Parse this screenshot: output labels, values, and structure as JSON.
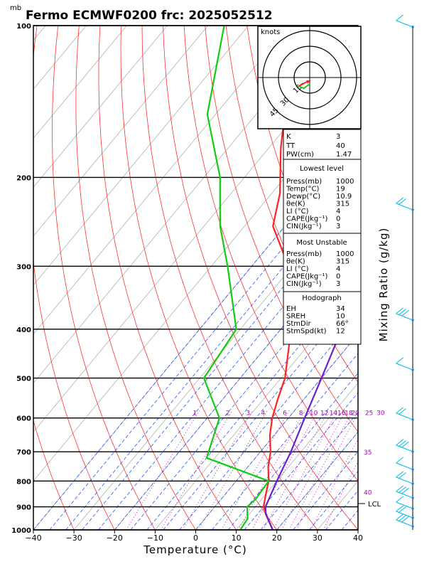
{
  "page": {
    "pressure_unit": "mb",
    "title": "Fermo ECMWF0200  frc: 2025052512",
    "x_axis_label": "Temperature (°C)",
    "right_axis_label": "Mixing Ratio (g/kg)",
    "lcl_label": "LCL"
  },
  "chart_data": {
    "type": "line",
    "title": "Fermo ECMWF0200  frc: 2025052512",
    "xlabel": "Temperature (°C)",
    "ylabel": "mb",
    "xlim": [
      -40,
      40
    ],
    "ylim": [
      1000,
      100
    ],
    "yscale": "log",
    "x_ticks": [
      -40,
      -30,
      -20,
      -10,
      0,
      10,
      20,
      30,
      40
    ],
    "y_ticks": [
      100,
      200,
      300,
      400,
      500,
      600,
      700,
      800,
      900,
      1000
    ],
    "mixing_ratio_labels": [
      "1",
      "2",
      "3",
      "4",
      "6",
      "8",
      "10",
      "12",
      "14",
      "16",
      "18",
      "20",
      "25",
      "30"
    ],
    "mixing_ratio_values": [
      1,
      2,
      3,
      4,
      6,
      8,
      10,
      12,
      14,
      16,
      18,
      20,
      25,
      30
    ],
    "theta_labels": [
      {
        "text": "35",
        "p": 700
      },
      {
        "text": "40",
        "p": 840
      }
    ],
    "series": [
      {
        "name": "",
        "color": "#ff2222",
        "points": [
          [
            19,
            1000
          ],
          [
            15.5,
            950
          ],
          [
            12,
            900
          ],
          [
            10,
            850
          ],
          [
            8,
            800
          ],
          [
            5,
            750
          ],
          [
            2.5,
            700
          ],
          [
            -1,
            650
          ],
          [
            -4,
            600
          ],
          [
            -6.5,
            550
          ],
          [
            -9,
            500
          ],
          [
            -13,
            450
          ],
          [
            -17.5,
            400
          ],
          [
            -24,
            350
          ],
          [
            -31,
            300
          ],
          [
            -43,
            250
          ],
          [
            -48,
            215
          ],
          [
            -57,
            175
          ],
          [
            -63,
            150
          ],
          [
            -67,
            125
          ],
          [
            -70,
            100
          ]
        ]
      },
      {
        "name": "",
        "color": "#11cc11",
        "points": [
          [
            11,
            1000
          ],
          [
            10.5,
            950
          ],
          [
            8,
            900
          ],
          [
            8.5,
            870
          ],
          [
            8,
            800
          ],
          [
            -12,
            720
          ],
          [
            -17,
            600
          ],
          [
            -29,
            500
          ],
          [
            -31,
            400
          ],
          [
            -46,
            300
          ],
          [
            -56,
            250
          ],
          [
            -66,
            200
          ],
          [
            -82,
            150
          ],
          [
            -96,
            100
          ]
        ]
      },
      {
        "name": "",
        "color": "#6a1fd0",
        "points": [
          [
            19,
            1000
          ],
          [
            14,
            930
          ],
          [
            12.5,
            900
          ],
          [
            10,
            800
          ],
          [
            7.5,
            700
          ],
          [
            4,
            600
          ],
          [
            0,
            500
          ],
          [
            -5,
            400
          ],
          [
            -13,
            300
          ],
          [
            -20,
            250
          ],
          [
            -29,
            200
          ],
          [
            -47,
            150
          ],
          [
            -68,
            110
          ]
        ]
      }
    ]
  },
  "indices": {
    "K": "3",
    "TT": "40",
    "PW_label": "PW(cm)",
    "PW": "1.47",
    "lowest_title": "Lowest level",
    "lowest": [
      {
        "label": "Press(mb)",
        "value": "1000"
      },
      {
        "label": "Temp(°C)",
        "value": "19"
      },
      {
        "label": "Dewp(°C)",
        "value": "10.9"
      },
      {
        "label": "θe(K)",
        "value": "315"
      },
      {
        "label": "LI (°C)",
        "value": "4"
      },
      {
        "label": "CAPE(Jkg⁻¹)",
        "value": "0"
      },
      {
        "label": "CIN(Jkg⁻¹)",
        "value": "3"
      }
    ],
    "unstable_title": "Most Unstable",
    "unstable": [
      {
        "label": "Press(mb)",
        "value": "1000"
      },
      {
        "label": "θe(K)",
        "value": "315"
      },
      {
        "label": "LI (°C)",
        "value": "4"
      },
      {
        "label": "CAPE(Jkg⁻¹)",
        "value": "0"
      },
      {
        "label": "CIN(Jkg⁻¹)",
        "value": "3"
      }
    ],
    "hodo_title": "Hodograph",
    "hodo": [
      {
        "label": "EH",
        "value": "34"
      },
      {
        "label": "SREH",
        "value": "10"
      },
      {
        "label": "StmDir",
        "value": "66°"
      },
      {
        "label": "StmSpd(kt)",
        "value": "12"
      }
    ]
  },
  "hodograph": {
    "unit_label": "knots",
    "ring_labels": [
      "15",
      "30",
      "45"
    ]
  }
}
